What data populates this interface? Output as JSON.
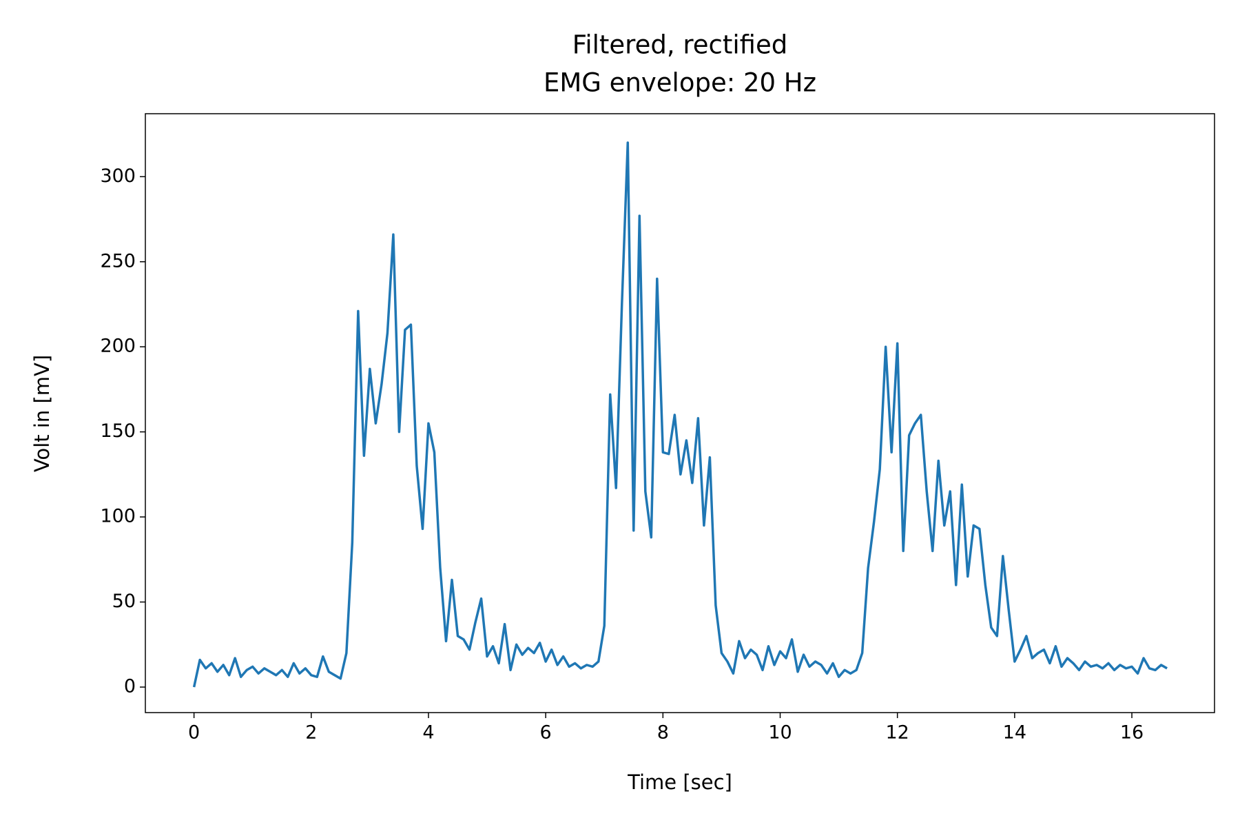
{
  "chart_data": {
    "type": "line",
    "title": [
      "Filtered, rectified",
      "EMG envelope: 20 Hz"
    ],
    "xlabel": "Time [sec]",
    "ylabel": "Volt in [mV]",
    "xlim": [
      -0.83,
      17.41
    ],
    "ylim": [
      -15,
      337
    ],
    "xticks": [
      0,
      2,
      4,
      6,
      8,
      10,
      12,
      14,
      16
    ],
    "yticks": [
      0,
      50,
      100,
      150,
      200,
      250,
      300
    ],
    "grid": false,
    "x": [
      0,
      0.1,
      0.2,
      0.3,
      0.4,
      0.5,
      0.6,
      0.7,
      0.8,
      0.9,
      1,
      1.1,
      1.2,
      1.3,
      1.4,
      1.5,
      1.6,
      1.7,
      1.8,
      1.9,
      2,
      2.1,
      2.2,
      2.3,
      2.4,
      2.5,
      2.6,
      2.7,
      2.8,
      2.9,
      3,
      3.1,
      3.2,
      3.3,
      3.4,
      3.5,
      3.6,
      3.7,
      3.8,
      3.9,
      4,
      4.1,
      4.2,
      4.3,
      4.4,
      4.5,
      4.6,
      4.7,
      4.8,
      4.9,
      5,
      5.1,
      5.2,
      5.3,
      5.4,
      5.5,
      5.6,
      5.7,
      5.8,
      5.9,
      6,
      6.1,
      6.2,
      6.3,
      6.4,
      6.5,
      6.6,
      6.7,
      6.8,
      6.9,
      7,
      7.1,
      7.2,
      7.3,
      7.4,
      7.5,
      7.6,
      7.7,
      7.8,
      7.9,
      8,
      8.1,
      8.2,
      8.3,
      8.4,
      8.5,
      8.6,
      8.7,
      8.8,
      8.9,
      9,
      9.1,
      9.2,
      9.3,
      9.4,
      9.5,
      9.6,
      9.7,
      9.8,
      9.9,
      10,
      10.1,
      10.2,
      10.3,
      10.4,
      10.5,
      10.6,
      10.7,
      10.8,
      10.9,
      11,
      11.1,
      11.2,
      11.3,
      11.4,
      11.5,
      11.6,
      11.7,
      11.8,
      11.9,
      12,
      12.1,
      12.2,
      12.3,
      12.4,
      12.5,
      12.6,
      12.7,
      12.8,
      12.9,
      13,
      13.1,
      13.2,
      13.3,
      13.4,
      13.5,
      13.6,
      13.7,
      13.8,
      13.9,
      14,
      14.1,
      14.2,
      14.3,
      14.4,
      14.5,
      14.6,
      14.7,
      14.8,
      14.9,
      15,
      15.1,
      15.2,
      15.3,
      15.4,
      15.5,
      15.6,
      15.7,
      15.8,
      15.9,
      16,
      16.1,
      16.2,
      16.3,
      16.4,
      16.5,
      16.6
    ],
    "series": [
      {
        "color": "#1f77b4",
        "values": [
          0,
          16,
          11,
          14,
          9,
          13,
          7,
          17,
          6,
          10,
          12,
          8,
          11,
          9,
          7,
          10,
          6,
          14,
          8,
          11,
          7,
          6,
          18,
          9,
          7,
          5,
          20,
          85,
          221,
          136,
          187,
          155,
          178,
          208,
          266,
          150,
          210,
          213,
          130,
          93,
          155,
          138,
          70,
          27,
          63,
          30,
          28,
          22,
          38,
          52,
          18,
          24,
          14,
          37,
          10,
          25,
          19,
          23,
          20,
          26,
          15,
          22,
          13,
          18,
          12,
          14,
          11,
          13,
          12,
          15,
          36,
          172,
          117,
          225,
          320,
          92,
          277,
          115,
          88,
          240,
          138,
          137,
          160,
          125,
          145,
          120,
          158,
          95,
          135,
          48,
          20,
          15,
          8,
          27,
          17,
          22,
          19,
          10,
          24,
          13,
          21,
          17,
          28,
          9,
          19,
          12,
          15,
          13,
          8,
          14,
          6,
          10,
          8,
          10,
          20,
          70,
          97,
          128,
          200,
          138,
          202,
          80,
          148,
          155,
          160,
          115,
          80,
          133,
          95,
          115,
          60,
          119,
          65,
          95,
          93,
          60,
          35,
          30,
          77,
          45,
          15,
          22,
          30,
          17,
          20,
          22,
          14,
          24,
          12,
          17,
          14,
          10,
          15,
          12,
          13,
          11,
          14,
          10,
          13,
          11,
          12,
          8,
          17,
          11,
          10,
          13,
          11
        ]
      }
    ]
  }
}
